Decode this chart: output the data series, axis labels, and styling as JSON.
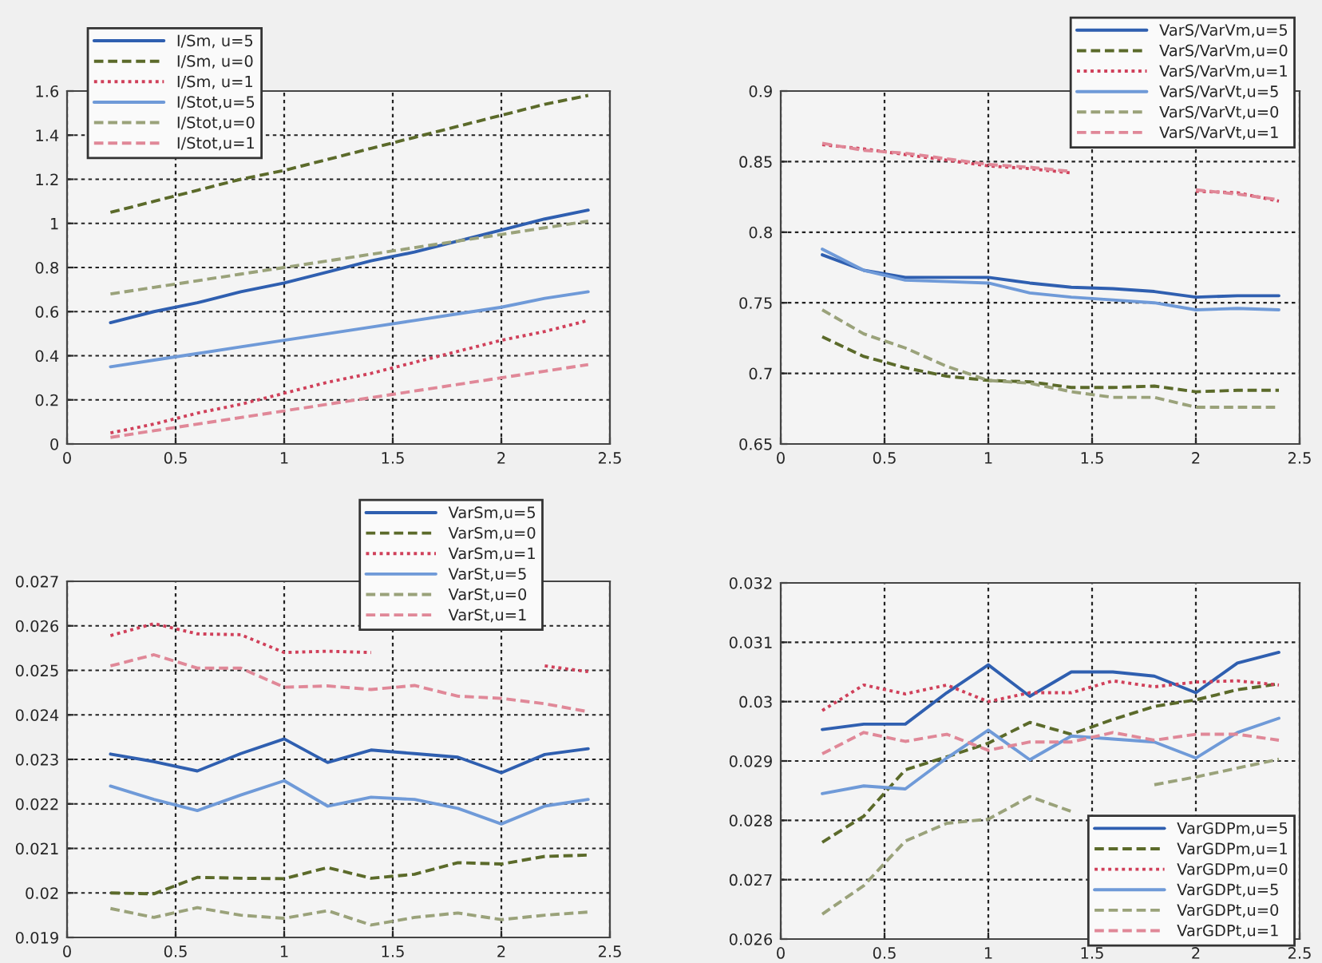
{
  "chart_data": [
    {
      "type": "line",
      "x": [
        0.2,
        0.4,
        0.6,
        0.8,
        1.0,
        1.2,
        1.4,
        1.6,
        1.8,
        2.0,
        2.2,
        2.4
      ],
      "xlim": [
        0,
        2.5
      ],
      "xticks": [
        0,
        0.5,
        1,
        1.5,
        2,
        2.5
      ],
      "ylim": [
        0,
        1.6
      ],
      "yticks": [
        0,
        0.2,
        0.4,
        0.6,
        0.8,
        1,
        1.2,
        1.4,
        1.6
      ],
      "grid": true,
      "legend": "top left",
      "series": [
        {
          "name": "I/Sm, u=5",
          "color": "#2f5fb0",
          "line_style": "solid",
          "values": [
            0.55,
            0.6,
            0.64,
            0.69,
            0.73,
            0.78,
            0.83,
            0.87,
            0.92,
            0.97,
            1.02,
            1.06
          ]
        },
        {
          "name": "I/Sm, u=0",
          "color": "#5b6a2a",
          "line_style": "dashed",
          "values": [
            1.05,
            1.1,
            1.15,
            1.2,
            1.24,
            1.29,
            1.34,
            1.39,
            1.44,
            1.49,
            1.54,
            1.58
          ]
        },
        {
          "name": "I/Sm, u=1",
          "color": "#d0405a",
          "line_style": "dotted",
          "values": [
            0.05,
            0.09,
            0.14,
            0.18,
            0.23,
            0.28,
            0.32,
            0.37,
            0.42,
            0.47,
            0.51,
            0.56
          ]
        },
        {
          "name": "I/Stot,u=5",
          "color": "#6f9ad8",
          "line_style": "solid",
          "values": [
            0.35,
            0.38,
            0.41,
            0.44,
            0.47,
            0.5,
            0.53,
            0.56,
            0.59,
            0.62,
            0.66,
            0.69
          ]
        },
        {
          "name": "I/Stot,u=0",
          "color": "#9aa27a",
          "line_style": "dashed",
          "values": [
            0.68,
            0.71,
            0.74,
            0.77,
            0.8,
            0.83,
            0.86,
            0.89,
            0.92,
            0.95,
            0.98,
            1.01
          ]
        },
        {
          "name": "I/Stot,u=1",
          "color": "#e08898",
          "line_style": "dashed",
          "values": [
            0.03,
            0.06,
            0.09,
            0.12,
            0.15,
            0.18,
            0.21,
            0.24,
            0.27,
            0.3,
            0.33,
            0.36
          ]
        }
      ]
    },
    {
      "type": "line",
      "x": [
        0.2,
        0.4,
        0.6,
        0.8,
        1.0,
        1.2,
        1.4,
        1.6,
        1.8,
        2.0,
        2.2,
        2.4
      ],
      "xlim": [
        0,
        2.5
      ],
      "xticks": [
        0,
        0.5,
        1,
        1.5,
        2,
        2.5
      ],
      "ylim": [
        0.65,
        0.9
      ],
      "yticks": [
        0.65,
        0.7,
        0.75,
        0.8,
        0.85,
        0.9
      ],
      "grid": true,
      "legend": "top right",
      "series": [
        {
          "name": "VarS/VarVm,u=5",
          "color": "#2f5fb0",
          "line_style": "solid",
          "values": [
            0.784,
            0.773,
            0.768,
            0.768,
            0.768,
            0.764,
            0.761,
            0.76,
            0.758,
            0.754,
            0.755,
            0.755
          ]
        },
        {
          "name": "VarS/VarVm,u=0",
          "color": "#5b6a2a",
          "line_style": "dashed",
          "values": [
            0.726,
            0.712,
            0.704,
            0.698,
            0.695,
            0.694,
            0.69,
            0.69,
            0.691,
            0.687,
            0.688,
            0.688
          ]
        },
        {
          "name": "VarS/VarVm,u=1",
          "color": "#d0405a",
          "line_style": "dotted",
          "values": [
            0.862,
            0.859,
            0.855,
            0.851,
            0.847,
            0.845,
            0.842,
            null,
            null,
            0.829,
            0.828,
            0.822
          ]
        },
        {
          "name": "VarS/VarVt,u=5",
          "color": "#6f9ad8",
          "line_style": "solid",
          "values": [
            0.788,
            0.773,
            0.766,
            0.765,
            0.764,
            0.757,
            0.754,
            0.752,
            0.75,
            0.745,
            0.746,
            0.745
          ]
        },
        {
          "name": "VarS/VarVt,u=0",
          "color": "#9aa27a",
          "line_style": "dashed",
          "values": [
            0.745,
            0.728,
            0.718,
            0.705,
            0.695,
            0.693,
            0.687,
            0.683,
            0.683,
            0.676,
            0.676,
            0.676
          ]
        },
        {
          "name": "VarS/VarVt,u=1",
          "color": "#e08898",
          "line_style": "dashed",
          "values": [
            0.863,
            0.858,
            0.856,
            0.852,
            0.848,
            0.846,
            0.843,
            null,
            null,
            0.83,
            0.827,
            0.823
          ]
        }
      ]
    },
    {
      "type": "line",
      "x": [
        0.2,
        0.4,
        0.6,
        0.8,
        1.0,
        1.2,
        1.4,
        1.6,
        1.8,
        2.0,
        2.2,
        2.4
      ],
      "xlim": [
        0,
        2.5
      ],
      "xticks": [
        0,
        0.5,
        1,
        1.5,
        2,
        2.5
      ],
      "ylim": [
        0.019,
        0.027
      ],
      "yticks": [
        0.019,
        0.02,
        0.021,
        0.022,
        0.023,
        0.024,
        0.025,
        0.026,
        0.027
      ],
      "grid": true,
      "legend": "top right",
      "series": [
        {
          "name": "VarSm,u=5",
          "color": "#2f5fb0",
          "line_style": "solid",
          "values": [
            0.02312,
            0.02295,
            0.02274,
            0.02313,
            0.02346,
            0.02293,
            0.02321,
            0.02313,
            0.02305,
            0.0227,
            0.02311,
            0.02324
          ]
        },
        {
          "name": "VarSm,u=0",
          "color": "#5b6a2a",
          "line_style": "dashed",
          "values": [
            0.02,
            0.01998,
            0.02035,
            0.02033,
            0.02032,
            0.02057,
            0.02033,
            0.02042,
            0.02068,
            0.02065,
            0.02082,
            0.02085
          ]
        },
        {
          "name": "VarSm,u=1",
          "color": "#d0405a",
          "line_style": "dotted",
          "values": [
            0.02578,
            0.02605,
            0.02582,
            0.0258,
            0.0254,
            0.02543,
            0.0254,
            null,
            null,
            null,
            0.0251,
            0.02497
          ]
        },
        {
          "name": "VarSt,u=5",
          "color": "#6f9ad8",
          "line_style": "solid",
          "values": [
            0.0224,
            0.0221,
            0.02185,
            0.0222,
            0.02252,
            0.02195,
            0.02215,
            0.0221,
            0.0219,
            0.02155,
            0.02195,
            0.0221
          ]
        },
        {
          "name": "VarSt,u=0",
          "color": "#9aa27a",
          "line_style": "dashed",
          "values": [
            0.01965,
            0.01945,
            0.01967,
            0.0195,
            0.01943,
            0.0196,
            0.01928,
            0.01945,
            0.01955,
            0.0194,
            0.0195,
            0.01957
          ]
        },
        {
          "name": "VarSt,u=1",
          "color": "#e08898",
          "line_style": "dashed",
          "values": [
            0.0251,
            0.02535,
            0.02505,
            0.02505,
            0.02462,
            0.02465,
            0.02457,
            0.02466,
            0.02442,
            0.02437,
            0.02425,
            0.02407
          ]
        }
      ]
    },
    {
      "type": "line",
      "x": [
        0.2,
        0.4,
        0.6,
        0.8,
        1.0,
        1.2,
        1.4,
        1.6,
        1.8,
        2.0,
        2.2,
        2.4
      ],
      "xlim": [
        0,
        2.5
      ],
      "xticks": [
        0,
        0.5,
        1,
        1.5,
        2,
        2.5
      ],
      "ylim": [
        0.026,
        0.032
      ],
      "yticks": [
        0.026,
        0.027,
        0.028,
        0.029,
        0.03,
        0.031,
        0.032
      ],
      "grid": true,
      "legend": "bottom right",
      "series": [
        {
          "name": "VarGDPm,u=5",
          "color": "#2f5fb0",
          "line_style": "solid",
          "values": [
            0.02953,
            0.02962,
            0.02962,
            0.03015,
            0.03062,
            0.03009,
            0.0305,
            0.0305,
            0.03043,
            0.03015,
            0.03065,
            0.03083
          ]
        },
        {
          "name": "VarGDPm,u=1",
          "color": "#5b6a2a",
          "line_style": "dashed",
          "values": [
            0.02763,
            0.02807,
            0.02885,
            0.02907,
            0.0293,
            0.02965,
            0.02945,
            0.0297,
            0.02992,
            0.03003,
            0.0302,
            0.0303
          ]
        },
        {
          "name": "VarGDPm,u=0",
          "color": "#d0405a",
          "line_style": "dotted",
          "values": [
            0.02985,
            0.03028,
            0.03013,
            0.03028,
            0.03,
            0.03015,
            0.03015,
            0.03035,
            0.03025,
            0.03033,
            0.03035,
            0.03028
          ]
        },
        {
          "name": "VarGDPt,u=5",
          "color": "#6f9ad8",
          "line_style": "solid",
          "values": [
            0.02845,
            0.02858,
            0.02853,
            0.02905,
            0.02952,
            0.02902,
            0.02942,
            0.02937,
            0.02932,
            0.02905,
            0.02948,
            0.02972
          ]
        },
        {
          "name": "VarGDPt,u=0",
          "color": "#9aa27a",
          "line_style": "dashed",
          "values": [
            0.02642,
            0.0269,
            0.02765,
            0.02795,
            0.02802,
            0.0284,
            0.02815,
            null,
            0.0286,
            0.02873,
            0.02888,
            0.02903
          ]
        },
        {
          "name": "VarGDPt,u=1",
          "color": "#e08898",
          "line_style": "dashed",
          "values": [
            0.02912,
            0.02948,
            0.02933,
            0.02945,
            0.02918,
            0.02932,
            0.02932,
            0.02948,
            0.02935,
            0.02945,
            0.02945,
            0.02935
          ]
        }
      ]
    }
  ]
}
